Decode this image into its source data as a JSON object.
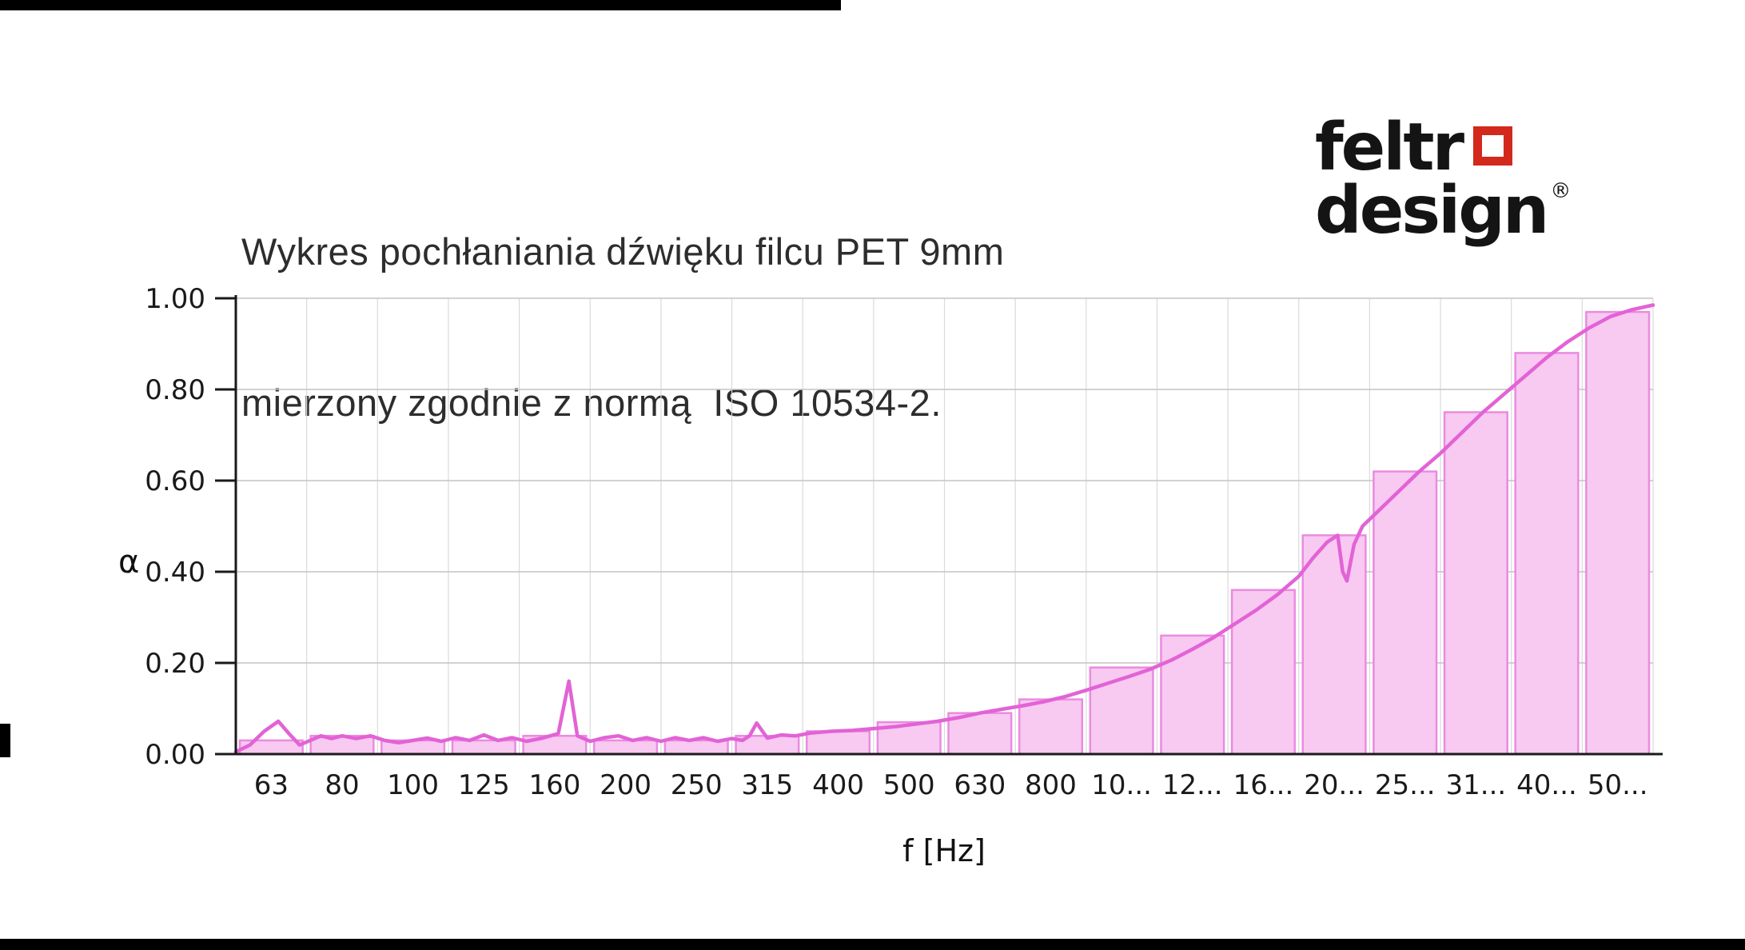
{
  "header": {
    "title_line1": "Wykres pochłaniania dźwięku filcu PET 9mm",
    "title_line2": "mierzony zgodnie z normą  ISO 10534-2."
  },
  "logo": {
    "word_top": "feltr",
    "word_bottom": "design",
    "registered_mark": "®",
    "square_color": "#d2291c"
  },
  "chart_data": {
    "type": "bar",
    "title": "Wykres pochłaniania dźwięku filcu PET 9mm mierzony zgodnie z normą ISO 10534-2.",
    "xlabel": "f [Hz]",
    "ylabel": "α",
    "ylim": [
      0,
      1.0
    ],
    "grid": true,
    "legend": false,
    "categories": [
      "63",
      "80",
      "100",
      "125",
      "160",
      "200",
      "250",
      "315",
      "400",
      "500",
      "630",
      "800",
      "10...",
      "12...",
      "16...",
      "20...",
      "25...",
      "31...",
      "40...",
      "50..."
    ],
    "values": [
      0.03,
      0.04,
      0.03,
      0.03,
      0.04,
      0.03,
      0.03,
      0.04,
      0.05,
      0.07,
      0.09,
      0.12,
      0.19,
      0.26,
      0.36,
      0.48,
      0.62,
      0.75,
      0.88,
      0.97
    ],
    "yticks": [
      "0.00",
      "0.20",
      "0.40",
      "0.60",
      "0.80",
      "1.00"
    ],
    "line_series": [
      [
        0,
        0.005
      ],
      [
        0.2,
        0.02
      ],
      [
        0.4,
        0.05
      ],
      [
        0.6,
        0.072
      ],
      [
        0.75,
        0.045
      ],
      [
        0.9,
        0.02
      ],
      [
        1.05,
        0.03
      ],
      [
        1.2,
        0.04
      ],
      [
        1.35,
        0.034
      ],
      [
        1.5,
        0.04
      ],
      [
        1.7,
        0.034
      ],
      [
        1.9,
        0.04
      ],
      [
        2.1,
        0.03
      ],
      [
        2.3,
        0.025
      ],
      [
        2.5,
        0.03
      ],
      [
        2.7,
        0.035
      ],
      [
        2.9,
        0.028
      ],
      [
        3.1,
        0.036
      ],
      [
        3.3,
        0.03
      ],
      [
        3.5,
        0.042
      ],
      [
        3.7,
        0.03
      ],
      [
        3.9,
        0.036
      ],
      [
        4.1,
        0.028
      ],
      [
        4.3,
        0.034
      ],
      [
        4.55,
        0.045
      ],
      [
        4.7,
        0.16
      ],
      [
        4.82,
        0.04
      ],
      [
        5.0,
        0.028
      ],
      [
        5.2,
        0.036
      ],
      [
        5.4,
        0.04
      ],
      [
        5.6,
        0.03
      ],
      [
        5.8,
        0.036
      ],
      [
        6.0,
        0.028
      ],
      [
        6.2,
        0.036
      ],
      [
        6.4,
        0.03
      ],
      [
        6.6,
        0.036
      ],
      [
        6.8,
        0.028
      ],
      [
        7.0,
        0.034
      ],
      [
        7.15,
        0.03
      ],
      [
        7.25,
        0.04
      ],
      [
        7.35,
        0.068
      ],
      [
        7.5,
        0.035
      ],
      [
        7.7,
        0.042
      ],
      [
        7.9,
        0.04
      ],
      [
        8.1,
        0.046
      ],
      [
        8.4,
        0.05
      ],
      [
        8.7,
        0.052
      ],
      [
        9.0,
        0.056
      ],
      [
        9.3,
        0.06
      ],
      [
        9.6,
        0.066
      ],
      [
        9.9,
        0.072
      ],
      [
        10.2,
        0.08
      ],
      [
        10.5,
        0.09
      ],
      [
        10.8,
        0.098
      ],
      [
        11.1,
        0.106
      ],
      [
        11.4,
        0.115
      ],
      [
        11.7,
        0.126
      ],
      [
        12.0,
        0.14
      ],
      [
        12.3,
        0.155
      ],
      [
        12.6,
        0.17
      ],
      [
        12.9,
        0.186
      ],
      [
        13.2,
        0.206
      ],
      [
        13.5,
        0.23
      ],
      [
        13.8,
        0.256
      ],
      [
        14.1,
        0.286
      ],
      [
        14.4,
        0.316
      ],
      [
        14.7,
        0.35
      ],
      [
        15.0,
        0.39
      ],
      [
        15.2,
        0.43
      ],
      [
        15.4,
        0.465
      ],
      [
        15.55,
        0.48
      ],
      [
        15.62,
        0.4
      ],
      [
        15.68,
        0.38
      ],
      [
        15.78,
        0.46
      ],
      [
        15.9,
        0.5
      ],
      [
        16.1,
        0.53
      ],
      [
        16.4,
        0.575
      ],
      [
        16.7,
        0.62
      ],
      [
        17.0,
        0.66
      ],
      [
        17.3,
        0.705
      ],
      [
        17.6,
        0.75
      ],
      [
        17.9,
        0.79
      ],
      [
        18.2,
        0.83
      ],
      [
        18.5,
        0.87
      ],
      [
        18.8,
        0.905
      ],
      [
        19.1,
        0.935
      ],
      [
        19.4,
        0.96
      ],
      [
        19.7,
        0.975
      ],
      [
        20.0,
        0.985
      ]
    ],
    "colors": {
      "bar_fill": "#f8c9f1",
      "bar_stroke": "#ea8be0",
      "line": "#e263d6",
      "grid_h": "#c4c4c4",
      "grid_v": "#dadada",
      "axis": "#1a1a1a",
      "tick_text": "#1a1a1a"
    }
  }
}
